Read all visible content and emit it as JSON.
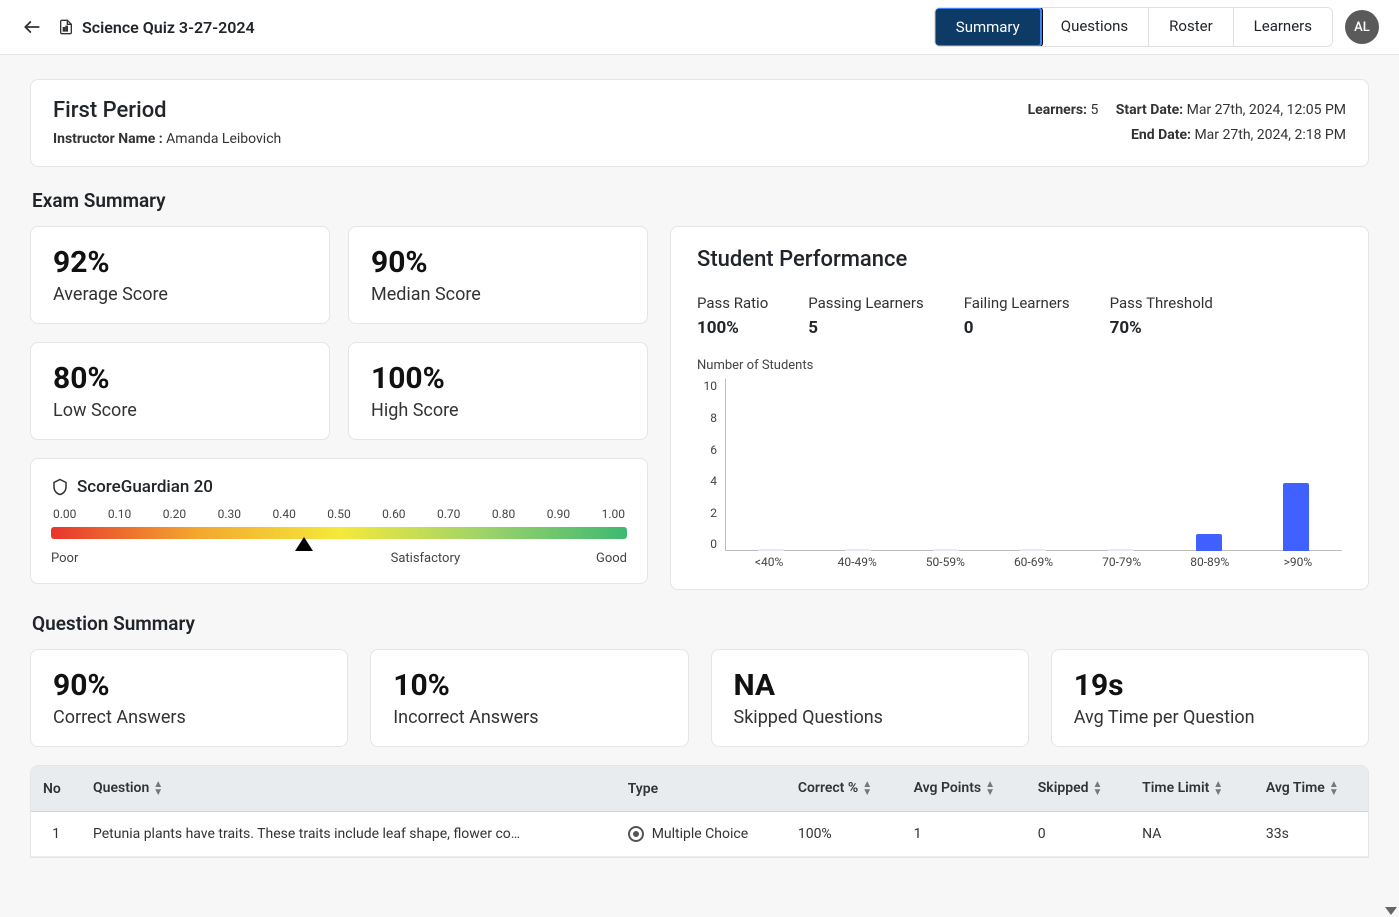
{
  "header": {
    "doc_title": "Science Quiz 3-27-2024",
    "tabs": [
      "Summary",
      "Questions",
      "Roster",
      "Learners"
    ],
    "active_tab": 0,
    "avatar_initials": "AL"
  },
  "class_info": {
    "period": "First Period",
    "instructor_label": "Instructor Name :",
    "instructor_name": "Amanda Leibovich",
    "learners_label": "Learners:",
    "learners_count": "5",
    "start_label": "Start Date:",
    "start_value": "Mar 27th, 2024, 12:05 PM",
    "end_label": "End Date:",
    "end_value": "Mar 27th, 2024, 2:18 PM"
  },
  "exam_summary": {
    "title": "Exam Summary",
    "metrics": {
      "average": {
        "value": "92%",
        "label": "Average Score"
      },
      "median": {
        "value": "90%",
        "label": "Median Score"
      },
      "low": {
        "value": "80%",
        "label": "Low Score"
      },
      "high": {
        "value": "100%",
        "label": "High Score"
      }
    },
    "gauge": {
      "title": "ScoreGuardian 20",
      "ticks": [
        "0.00",
        "0.10",
        "0.20",
        "0.30",
        "0.40",
        "0.50",
        "0.60",
        "0.70",
        "0.80",
        "0.90",
        "1.00"
      ],
      "marker_position_pct": 44,
      "labels": {
        "left": "Poor",
        "mid": "Satisfactory",
        "right": "Good"
      },
      "gradient": [
        "#e8352e",
        "#f3a62e",
        "#f5e93a",
        "#9ed36a",
        "#3fb971"
      ]
    }
  },
  "performance": {
    "title": "Student Performance",
    "stats": [
      {
        "label": "Pass Ratio",
        "value": "100%"
      },
      {
        "label": "Passing Learners",
        "value": "5"
      },
      {
        "label": "Failing Learners",
        "value": "0"
      },
      {
        "label": "Pass Threshold",
        "value": "70%"
      }
    ],
    "chart": {
      "type": "bar",
      "y_label": "Number of Students",
      "y_ticks": [
        "10",
        "8",
        "6",
        "4",
        "2",
        "0"
      ],
      "y_max": 10,
      "categories": [
        "<40%",
        "40-49%",
        "50-59%",
        "60-69%",
        "70-79%",
        "80-89%",
        ">90%"
      ],
      "values": [
        0,
        0,
        0,
        0,
        0,
        1,
        4
      ],
      "bar_color": "#4060ff",
      "bar_color_empty": "#e6e9f5",
      "background": "#ffffff"
    }
  },
  "question_summary": {
    "title": "Question Summary",
    "metrics": [
      {
        "value": "90%",
        "label": "Correct Answers"
      },
      {
        "value": "10%",
        "label": "Incorrect Answers"
      },
      {
        "value": "NA",
        "label": "Skipped Questions"
      },
      {
        "value": "19s",
        "label": "Avg Time per Question"
      }
    ],
    "table": {
      "columns": [
        "No",
        "Question",
        "Type",
        "Correct %",
        "Avg Points",
        "Skipped",
        "Time Limit",
        "Avg Time"
      ],
      "rows": [
        {
          "no": "1",
          "question": "Petunia plants have traits. These traits include leaf shape, flower color,...",
          "type": "Multiple Choice",
          "correct": "100%",
          "avg_points": "1",
          "skipped": "0",
          "time_limit": "NA",
          "avg_time": "33s"
        }
      ]
    }
  },
  "colors": {
    "active_tab_bg": "#0d3b66",
    "card_border": "#e5e5e5",
    "page_bg": "#f7f7f7",
    "table_header_bg": "#e9ecef"
  }
}
